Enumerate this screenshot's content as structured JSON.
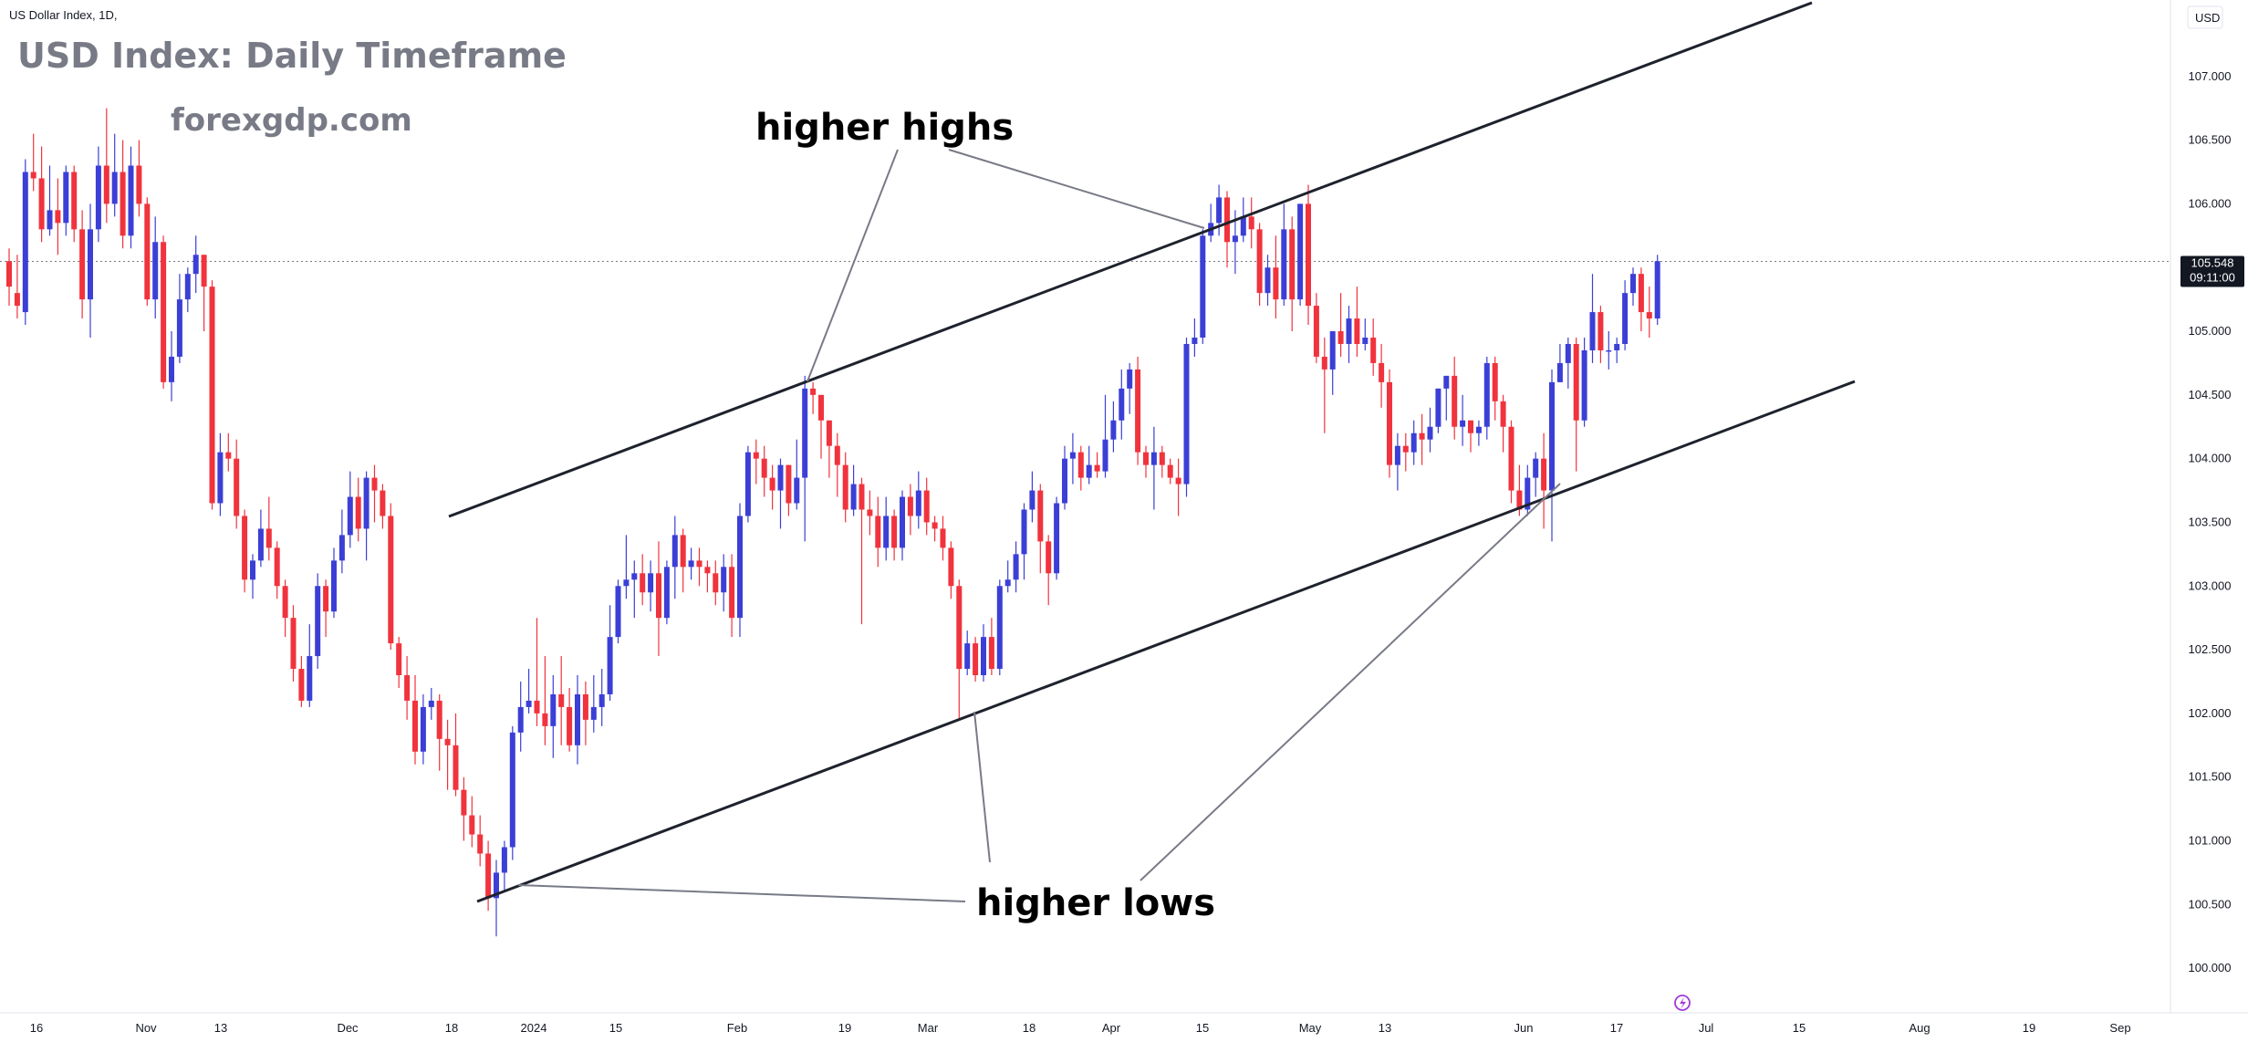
{
  "header": {
    "symbol_line": "US Dollar Index, 1D,",
    "title": "USD Index: Daily Timeframe",
    "watermark": "forexgdp.com",
    "currency_badge": "USD"
  },
  "price_label": {
    "price": "105.548",
    "countdown": "09:11:00"
  },
  "annotations": {
    "higher_highs": "higher highs",
    "higher_lows": "higher lows"
  },
  "colors": {
    "up": "#3b3fd6",
    "down": "#f0333d",
    "axis_text": "#131722",
    "price_badge_bg": "#131722",
    "trend_line": "#1e222d",
    "pointer_line": "#787b86"
  },
  "icons": {
    "bottom": "lightning-icon"
  },
  "chart_data": {
    "type": "candlestick",
    "title": "USD Index: Daily Timeframe",
    "ylim": [
      99.65,
      107.6
    ],
    "y_ticks": [
      "100.000",
      "100.500",
      "101.000",
      "101.500",
      "102.000",
      "102.500",
      "103.000",
      "103.500",
      "104.000",
      "104.500",
      "105.000",
      "105.500",
      "106.000",
      "106.500",
      "107.000"
    ],
    "x_ticks": [
      "16",
      "Nov",
      "13",
      "Dec",
      "18",
      "2024",
      "15",
      "Feb",
      "19",
      "Mar",
      "18",
      "Apr",
      "15",
      "May",
      "13",
      "Jun",
      "17",
      "Jul",
      "15",
      "Aug",
      "19",
      "Sep"
    ],
    "last_price": 105.548,
    "candles": [
      [
        105.55,
        105.35,
        105.65,
        105.2
      ],
      [
        105.3,
        105.2,
        105.6,
        105.1
      ],
      [
        105.15,
        106.25,
        106.35,
        105.05
      ],
      [
        106.25,
        106.2,
        106.55,
        106.1
      ],
      [
        106.2,
        105.8,
        106.45,
        105.7
      ],
      [
        105.8,
        105.95,
        106.3,
        105.75
      ],
      [
        105.95,
        105.85,
        106.2,
        105.6
      ],
      [
        105.85,
        106.25,
        106.3,
        105.75
      ],
      [
        106.25,
        105.8,
        106.3,
        105.7
      ],
      [
        105.8,
        105.25,
        105.95,
        105.1
      ],
      [
        105.25,
        105.8,
        106.0,
        104.95
      ],
      [
        105.8,
        106.3,
        106.45,
        105.7
      ],
      [
        106.3,
        106.0,
        106.75,
        105.85
      ],
      [
        106.0,
        106.25,
        106.55,
        105.9
      ],
      [
        106.25,
        105.75,
        106.5,
        105.65
      ],
      [
        105.75,
        106.3,
        106.45,
        105.65
      ],
      [
        106.3,
        106.0,
        106.5,
        105.9
      ],
      [
        106.0,
        105.25,
        106.05,
        105.2
      ],
      [
        105.25,
        105.7,
        105.9,
        105.1
      ],
      [
        105.7,
        104.6,
        105.75,
        104.55
      ],
      [
        104.6,
        104.8,
        105.0,
        104.45
      ],
      [
        104.8,
        105.25,
        105.45,
        104.75
      ],
      [
        105.25,
        105.45,
        105.5,
        105.15
      ],
      [
        105.45,
        105.6,
        105.75,
        105.3
      ],
      [
        105.6,
        105.35,
        105.6,
        105.0
      ],
      [
        105.35,
        103.65,
        105.4,
        103.6
      ],
      [
        103.65,
        104.05,
        104.2,
        103.55
      ],
      [
        104.05,
        104.0,
        104.2,
        103.9
      ],
      [
        104.0,
        103.55,
        104.15,
        103.45
      ],
      [
        103.55,
        103.05,
        103.6,
        102.95
      ],
      [
        103.05,
        103.2,
        103.25,
        102.9
      ],
      [
        103.2,
        103.45,
        103.6,
        103.15
      ],
      [
        103.45,
        103.3,
        103.7,
        103.2
      ],
      [
        103.3,
        103.0,
        103.35,
        102.9
      ],
      [
        103.0,
        102.75,
        103.05,
        102.6
      ],
      [
        102.75,
        102.35,
        102.85,
        102.25
      ],
      [
        102.35,
        102.1,
        102.45,
        102.05
      ],
      [
        102.1,
        102.45,
        102.7,
        102.05
      ],
      [
        102.45,
        103.0,
        103.1,
        102.35
      ],
      [
        103.0,
        102.8,
        103.05,
        102.6
      ],
      [
        102.8,
        103.2,
        103.3,
        102.75
      ],
      [
        103.2,
        103.4,
        103.6,
        103.1
      ],
      [
        103.4,
        103.7,
        103.9,
        103.3
      ],
      [
        103.7,
        103.45,
        103.85,
        103.35
      ],
      [
        103.45,
        103.85,
        103.9,
        103.2
      ],
      [
        103.85,
        103.75,
        103.95,
        103.5
      ],
      [
        103.75,
        103.55,
        103.8,
        103.45
      ],
      [
        103.55,
        102.55,
        103.65,
        102.5
      ],
      [
        102.55,
        102.3,
        102.6,
        102.2
      ],
      [
        102.3,
        102.1,
        102.45,
        101.95
      ],
      [
        102.1,
        101.7,
        102.3,
        101.6
      ],
      [
        101.7,
        102.05,
        102.15,
        101.6
      ],
      [
        102.05,
        102.1,
        102.2,
        101.95
      ],
      [
        102.1,
        101.8,
        102.15,
        101.55
      ],
      [
        101.8,
        101.75,
        101.95,
        101.4
      ],
      [
        101.75,
        101.4,
        102.0,
        101.35
      ],
      [
        101.4,
        101.2,
        101.5,
        101.0
      ],
      [
        101.2,
        101.05,
        101.35,
        100.95
      ],
      [
        101.05,
        100.9,
        101.2,
        100.8
      ],
      [
        100.9,
        100.55,
        101.0,
        100.45
      ],
      [
        100.55,
        100.75,
        100.85,
        100.25
      ],
      [
        100.75,
        100.95,
        101.0,
        100.6
      ],
      [
        100.95,
        101.85,
        101.9,
        100.85
      ],
      [
        101.85,
        102.05,
        102.25,
        101.7
      ],
      [
        102.05,
        102.1,
        102.35,
        102.0
      ],
      [
        102.1,
        102.0,
        102.75,
        101.9
      ],
      [
        102.0,
        101.9,
        102.45,
        101.75
      ],
      [
        101.9,
        102.15,
        102.3,
        101.65
      ],
      [
        102.15,
        102.05,
        102.45,
        101.75
      ],
      [
        102.05,
        101.75,
        102.2,
        101.7
      ],
      [
        101.75,
        102.15,
        102.3,
        101.6
      ],
      [
        102.15,
        101.95,
        102.25,
        101.75
      ],
      [
        101.95,
        102.05,
        102.3,
        101.85
      ],
      [
        102.05,
        102.15,
        102.35,
        101.9
      ],
      [
        102.15,
        102.6,
        102.85,
        102.1
      ],
      [
        102.6,
        103.0,
        103.05,
        102.55
      ],
      [
        103.0,
        103.05,
        103.4,
        102.9
      ],
      [
        103.05,
        103.1,
        103.2,
        102.75
      ],
      [
        103.1,
        102.95,
        103.25,
        102.85
      ],
      [
        102.95,
        103.1,
        103.2,
        102.8
      ],
      [
        103.1,
        102.75,
        103.35,
        102.45
      ],
      [
        102.75,
        103.15,
        103.2,
        102.7
      ],
      [
        103.15,
        103.4,
        103.55,
        102.9
      ],
      [
        103.4,
        103.15,
        103.45,
        102.95
      ],
      [
        103.15,
        103.2,
        103.3,
        103.05
      ],
      [
        103.2,
        103.15,
        103.3,
        103.0
      ],
      [
        103.15,
        103.1,
        103.2,
        102.95
      ],
      [
        103.1,
        102.95,
        103.2,
        102.85
      ],
      [
        102.95,
        103.15,
        103.25,
        102.8
      ],
      [
        103.15,
        102.75,
        103.25,
        102.6
      ],
      [
        102.75,
        103.55,
        103.65,
        102.6
      ],
      [
        103.55,
        104.05,
        104.1,
        103.5
      ],
      [
        104.05,
        104.0,
        104.15,
        103.8
      ],
      [
        104.0,
        103.85,
        104.1,
        103.7
      ],
      [
        103.85,
        103.75,
        103.95,
        103.6
      ],
      [
        103.75,
        103.95,
        104.0,
        103.45
      ],
      [
        103.95,
        103.65,
        103.95,
        103.55
      ],
      [
        103.65,
        103.85,
        104.15,
        103.6
      ],
      [
        103.85,
        104.55,
        104.65,
        103.35
      ],
      [
        104.55,
        104.5,
        104.6,
        104.35
      ],
      [
        104.5,
        104.3,
        104.5,
        104.0
      ],
      [
        104.3,
        104.1,
        104.3,
        103.85
      ],
      [
        104.1,
        103.95,
        104.2,
        103.7
      ],
      [
        103.95,
        103.6,
        104.05,
        103.5
      ],
      [
        103.6,
        103.8,
        103.95,
        103.55
      ],
      [
        103.8,
        103.6,
        103.85,
        102.7
      ],
      [
        103.6,
        103.55,
        103.75,
        103.4
      ],
      [
        103.55,
        103.3,
        103.7,
        103.15
      ],
      [
        103.3,
        103.55,
        103.7,
        103.2
      ],
      [
        103.55,
        103.3,
        103.6,
        103.2
      ],
      [
        103.3,
        103.7,
        103.75,
        103.2
      ],
      [
        103.7,
        103.55,
        103.8,
        103.4
      ],
      [
        103.55,
        103.75,
        103.9,
        103.45
      ],
      [
        103.75,
        103.5,
        103.85,
        103.4
      ],
      [
        103.5,
        103.45,
        103.55,
        103.35
      ],
      [
        103.45,
        103.3,
        103.55,
        103.2
      ],
      [
        103.3,
        103.0,
        103.35,
        102.9
      ],
      [
        103.0,
        102.35,
        103.05,
        101.95
      ],
      [
        102.35,
        102.55,
        102.65,
        102.3
      ],
      [
        102.55,
        102.3,
        102.6,
        102.25
      ],
      [
        102.3,
        102.6,
        102.7,
        102.25
      ],
      [
        102.6,
        102.35,
        102.75,
        102.3
      ],
      [
        102.35,
        103.0,
        103.05,
        102.3
      ],
      [
        103.0,
        103.05,
        103.2,
        102.95
      ],
      [
        103.05,
        103.25,
        103.35,
        102.95
      ],
      [
        103.25,
        103.6,
        103.65,
        103.05
      ],
      [
        103.6,
        103.75,
        103.9,
        103.5
      ],
      [
        103.75,
        103.35,
        103.8,
        103.1
      ],
      [
        103.35,
        103.1,
        103.4,
        102.85
      ],
      [
        103.1,
        103.65,
        103.7,
        103.05
      ],
      [
        103.65,
        104.0,
        104.1,
        103.6
      ],
      [
        104.0,
        104.05,
        104.2,
        103.8
      ],
      [
        104.05,
        103.85,
        104.1,
        103.75
      ],
      [
        103.85,
        103.95,
        104.1,
        103.8
      ],
      [
        103.95,
        103.9,
        104.05,
        103.85
      ],
      [
        103.9,
        104.15,
        104.5,
        103.85
      ],
      [
        104.15,
        104.3,
        104.45,
        104.05
      ],
      [
        104.3,
        104.55,
        104.7,
        104.15
      ],
      [
        104.55,
        104.7,
        104.75,
        104.35
      ],
      [
        104.7,
        104.05,
        104.8,
        103.95
      ],
      [
        104.05,
        103.95,
        104.1,
        103.85
      ],
      [
        103.95,
        104.05,
        104.25,
        103.6
      ],
      [
        104.05,
        103.95,
        104.1,
        103.85
      ],
      [
        103.95,
        103.85,
        104.0,
        103.8
      ],
      [
        103.85,
        103.8,
        104.0,
        103.55
      ],
      [
        103.8,
        104.9,
        104.95,
        103.7
      ],
      [
        104.9,
        104.95,
        105.1,
        104.8
      ],
      [
        104.95,
        105.75,
        105.8,
        104.9
      ],
      [
        105.75,
        105.85,
        106.0,
        105.7
      ],
      [
        105.85,
        106.05,
        106.15,
        105.75
      ],
      [
        106.05,
        105.7,
        106.1,
        105.5
      ],
      [
        105.7,
        105.75,
        105.95,
        105.45
      ],
      [
        105.75,
        105.9,
        106.05,
        105.7
      ],
      [
        105.9,
        105.8,
        106.05,
        105.65
      ],
      [
        105.8,
        105.3,
        105.85,
        105.2
      ],
      [
        105.3,
        105.5,
        105.6,
        105.2
      ],
      [
        105.5,
        105.25,
        105.75,
        105.1
      ],
      [
        105.25,
        105.8,
        106.0,
        105.2
      ],
      [
        105.8,
        105.25,
        105.9,
        105.0
      ],
      [
        105.25,
        106.0,
        106.0,
        105.2
      ],
      [
        106.0,
        105.2,
        106.15,
        105.05
      ],
      [
        105.2,
        104.8,
        105.3,
        104.75
      ],
      [
        104.8,
        104.7,
        104.95,
        104.2
      ],
      [
        104.7,
        105.0,
        105.0,
        104.5
      ],
      [
        105.0,
        104.9,
        105.3,
        104.8
      ],
      [
        104.9,
        105.1,
        105.2,
        104.75
      ],
      [
        105.1,
        104.9,
        105.35,
        104.8
      ],
      [
        104.9,
        104.95,
        105.1,
        104.85
      ],
      [
        104.95,
        104.75,
        105.1,
        104.65
      ],
      [
        104.75,
        104.6,
        104.9,
        104.4
      ],
      [
        104.6,
        103.95,
        104.7,
        103.85
      ],
      [
        103.95,
        104.1,
        104.2,
        103.75
      ],
      [
        104.1,
        104.05,
        104.2,
        103.9
      ],
      [
        104.05,
        104.2,
        104.3,
        103.95
      ],
      [
        104.2,
        104.15,
        104.35,
        103.95
      ],
      [
        104.15,
        104.25,
        104.4,
        104.05
      ],
      [
        104.25,
        104.55,
        104.55,
        104.2
      ],
      [
        104.55,
        104.65,
        104.65,
        104.3
      ],
      [
        104.65,
        104.25,
        104.8,
        104.15
      ],
      [
        104.25,
        104.3,
        104.5,
        104.1
      ],
      [
        104.3,
        104.2,
        104.3,
        104.05
      ],
      [
        104.2,
        104.25,
        104.3,
        104.1
      ],
      [
        104.25,
        104.75,
        104.8,
        104.15
      ],
      [
        104.75,
        104.45,
        104.8,
        104.3
      ],
      [
        104.45,
        104.25,
        104.5,
        104.05
      ],
      [
        104.25,
        103.75,
        104.3,
        103.65
      ],
      [
        103.75,
        103.6,
        103.95,
        103.55
      ],
      [
        103.6,
        103.85,
        103.95,
        103.55
      ],
      [
        103.85,
        104.0,
        104.05,
        103.7
      ],
      [
        104.0,
        103.75,
        104.2,
        103.45
      ],
      [
        103.75,
        104.6,
        104.7,
        103.35
      ],
      [
        104.6,
        104.75,
        104.9,
        104.6
      ],
      [
        104.75,
        104.9,
        104.95,
        104.55
      ],
      [
        104.9,
        104.3,
        104.95,
        103.9
      ],
      [
        104.3,
        104.85,
        104.95,
        104.25
      ],
      [
        104.85,
        105.15,
        105.45,
        104.75
      ],
      [
        105.15,
        104.85,
        105.2,
        104.75
      ],
      [
        104.85,
        104.85,
        105.0,
        104.7
      ],
      [
        104.85,
        104.9,
        104.95,
        104.75
      ],
      [
        104.9,
        105.3,
        105.4,
        104.85
      ],
      [
        105.3,
        105.45,
        105.5,
        105.2
      ],
      [
        105.45,
        105.15,
        105.5,
        105.0
      ],
      [
        105.15,
        105.1,
        105.35,
        104.95
      ],
      [
        105.1,
        105.55,
        105.6,
        105.05
      ]
    ]
  }
}
